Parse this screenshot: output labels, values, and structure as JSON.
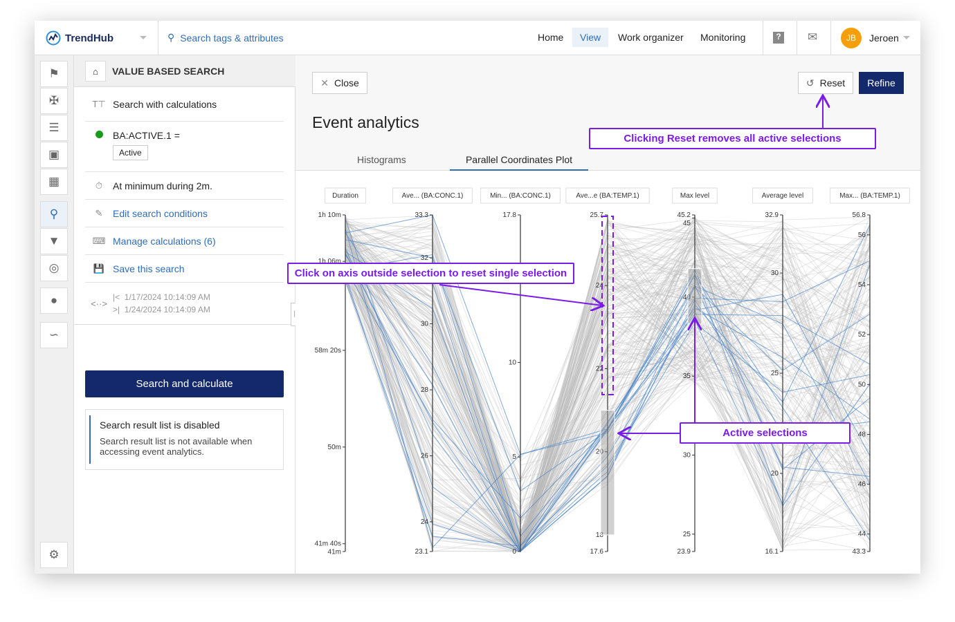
{
  "app": {
    "name": "TrendHub",
    "search_label": "Search tags & attributes",
    "nav": [
      "Home",
      "View",
      "Work organizer",
      "Monitoring"
    ],
    "active_nav": "View",
    "user_initials": "JB",
    "user_name": "Jeroen"
  },
  "rail": {
    "icons": [
      "tag-icon",
      "calculation-icon",
      "layers-icon",
      "comment-icon",
      "dashboard-icon",
      "search-icon",
      "filter-icon",
      "fingerprint-icon",
      "lightbulb-icon",
      "pattern-icon",
      "gear-icon"
    ]
  },
  "panel": {
    "title": "VALUE BASED SEARCH",
    "calc_label": "Search with calculations",
    "condition": "BA:ACTIVE.1 =",
    "condition_value": "Active",
    "duration": "At minimum during 2m.",
    "edit": "Edit search conditions",
    "manage": "Manage calculations (6)",
    "save": "Save this search",
    "start": "1/17/2024 10:14:09 AM",
    "end": "1/24/2024 10:14:09 AM",
    "search_button": "Search and calculate",
    "notice_title": "Search result list is disabled",
    "notice_body": "Search result list is not available when accessing event analytics.",
    "status_color": "#1a9a1a"
  },
  "main": {
    "close": "Close",
    "reset": "Reset",
    "refine": "Refine",
    "title": "Event analytics",
    "tabs": [
      "Histograms",
      "Parallel Coordinates Plot"
    ],
    "active_tab": "Parallel Coordinates Plot"
  },
  "annotations": {
    "reset": "Clicking Reset removes all active selections",
    "axis": "Click on axis outside selection to reset single selection",
    "active": "Active selections"
  },
  "chart_data": {
    "type": "parallel-coordinates",
    "selected_color": "#4a86c8",
    "unselected_color": "#bbbbbb",
    "axes": [
      {
        "name": "Duration",
        "ticks": [
          "1h 10m",
          "1h 06m",
          "58m 20s",
          "50m",
          "41m 40s",
          "41m"
        ],
        "tick_values": [
          70,
          66,
          58.33,
          50,
          41.67,
          41
        ],
        "range": [
          41,
          70
        ]
      },
      {
        "name": "Ave... (BA:CONC.1)",
        "ticks": [
          "33.3",
          "32",
          "30",
          "28",
          "26",
          "24",
          "23.1"
        ],
        "tick_values": [
          33.3,
          32,
          30,
          28,
          26,
          24,
          23.1
        ],
        "range": [
          23.1,
          33.3
        ]
      },
      {
        "name": "Min... (BA:CONC.1)",
        "ticks": [
          "17.8",
          "10",
          "5",
          "0"
        ],
        "tick_values": [
          17.8,
          10,
          5,
          0
        ],
        "range": [
          0,
          17.8
        ]
      },
      {
        "name": "Ave...e (BA:TEMP.1)",
        "ticks": [
          "25.7",
          "24",
          "22",
          "20",
          "18",
          "17.6"
        ],
        "tick_values": [
          25.7,
          24,
          22,
          20,
          18,
          17.6
        ],
        "range": [
          17.6,
          25.7
        ],
        "selection": [
          18.0,
          21.0
        ]
      },
      {
        "name": "Max level",
        "ticks": [
          "45.2",
          "45",
          "40",
          "35",
          "30",
          "25",
          "23.9"
        ],
        "tick_values": [
          45.2,
          45,
          40,
          35,
          30,
          25,
          23.9
        ],
        "range": [
          23.9,
          45.2
        ],
        "selection": [
          38.3,
          41.8
        ]
      },
      {
        "name": "Average level",
        "ticks": [
          "32.9",
          "30",
          "25",
          "20",
          "16.1"
        ],
        "tick_values": [
          32.9,
          30,
          25,
          20,
          16.1
        ],
        "range": [
          16.1,
          32.9
        ]
      },
      {
        "name": "Max... (BA:TEMP.1)",
        "ticks": [
          "56.8",
          "56",
          "54",
          "52",
          "50",
          "48",
          "46",
          "44",
          "43.3"
        ],
        "tick_values": [
          56.8,
          56,
          54,
          52,
          50,
          48,
          46,
          44,
          43.3
        ],
        "range": [
          43.3,
          56.8
        ]
      }
    ]
  }
}
